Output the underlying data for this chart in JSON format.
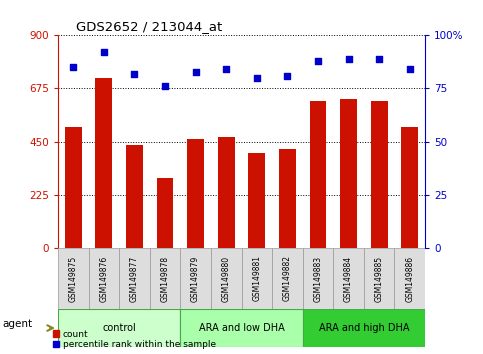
{
  "title": "GDS2652 / 213044_at",
  "samples": [
    "GSM149875",
    "GSM149876",
    "GSM149877",
    "GSM149878",
    "GSM149879",
    "GSM149880",
    "GSM149881",
    "GSM149882",
    "GSM149883",
    "GSM149884",
    "GSM149885",
    "GSM149886"
  ],
  "counts": [
    510,
    720,
    435,
    295,
    460,
    470,
    400,
    420,
    620,
    630,
    620,
    510
  ],
  "percentiles": [
    85,
    92,
    82,
    76,
    83,
    84,
    80,
    81,
    88,
    89,
    89,
    84
  ],
  "groups": [
    {
      "label": "control",
      "start": 0,
      "end": 3,
      "color": "#ccffcc",
      "border": "#44aa44"
    },
    {
      "label": "ARA and low DHA",
      "start": 4,
      "end": 7,
      "color": "#aaffaa",
      "border": "#44aa44"
    },
    {
      "label": "ARA and high DHA",
      "start": 8,
      "end": 11,
      "color": "#33cc33",
      "border": "#44aa44"
    }
  ],
  "bar_color": "#cc1100",
  "dot_color": "#0000cc",
  "ylim_left": [
    0,
    900
  ],
  "ylim_right": [
    0,
    100
  ],
  "yticks_left": [
    0,
    225,
    450,
    675,
    900
  ],
  "yticks_right": [
    0,
    25,
    50,
    75,
    100
  ],
  "yticklabels_right": [
    "0",
    "25",
    "50",
    "75",
    "100%"
  ],
  "left_axis_color": "#cc1100",
  "right_axis_color": "#0000cc",
  "grid_color": "#000000",
  "agent_label": "agent",
  "legend_count": "count",
  "legend_percentile": "percentile rank within the sample",
  "sample_box_color": "#dddddd",
  "sample_box_edge": "#999999"
}
